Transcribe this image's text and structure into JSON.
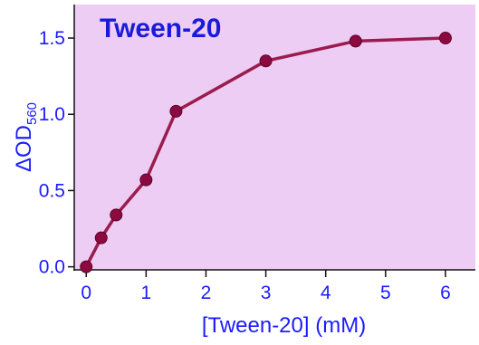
{
  "chart_data": {
    "type": "line",
    "title": "Tween-20",
    "xlabel": "[Tween-20] (mM)",
    "ylabel": "ΔOD",
    "ylabel_subscript": "560",
    "xlim": [
      -0.2,
      6.5
    ],
    "ylim": [
      -0.02,
      1.72
    ],
    "xticks": [
      0,
      1,
      2,
      3,
      4,
      5,
      6
    ],
    "yticks": [
      0.0,
      0.5,
      1.0,
      1.5
    ],
    "ytick_labels": [
      "0.0",
      "0.5",
      "1.0",
      "1.5"
    ],
    "grid": false,
    "series": [
      {
        "x": [
          0,
          0.25,
          0.5,
          1,
          1.5,
          3,
          4.5,
          6
        ],
        "y": [
          0.0,
          0.19,
          0.34,
          0.57,
          1.02,
          1.35,
          1.48,
          1.5
        ]
      }
    ]
  },
  "colors": {
    "plot_background": "#eecdf5",
    "line": "#9b1c4c",
    "marker": "#8c0a40",
    "text": "#1c1cff",
    "title": "#1a1ad8",
    "axis": "#111111"
  }
}
